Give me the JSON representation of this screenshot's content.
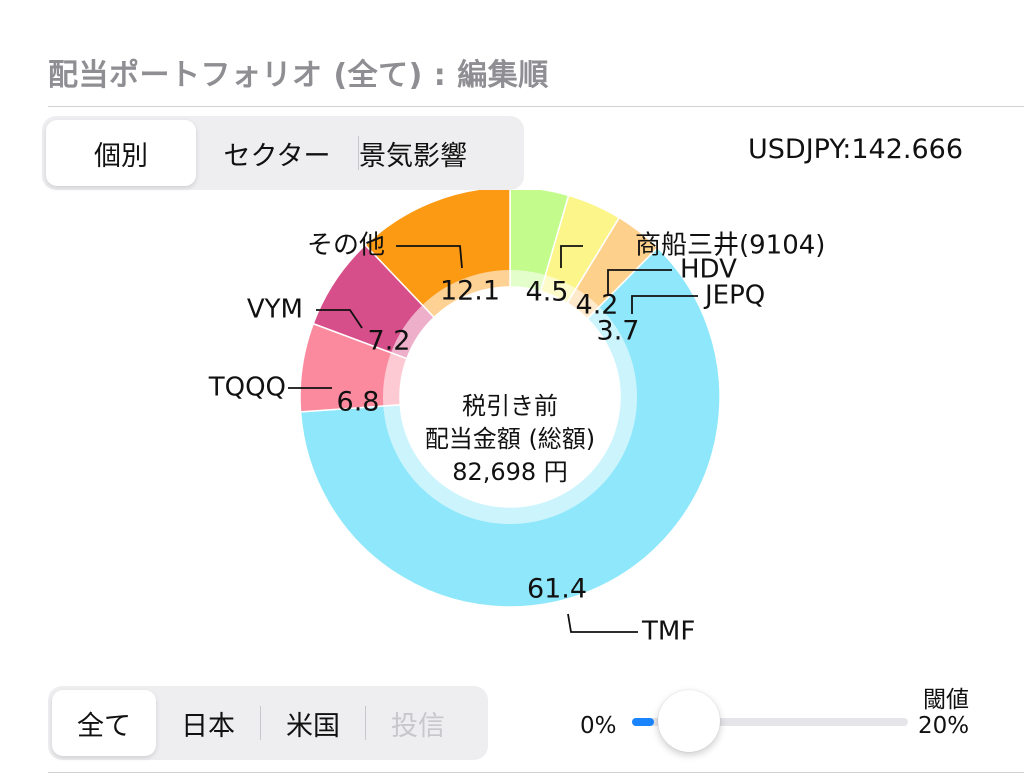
{
  "header": {
    "title": "配当ポートフォリオ (全て) : 編集順",
    "usdjpy": "USDJPY:142.666"
  },
  "view_tabs": [
    {
      "label": "個別",
      "active": true
    },
    {
      "label": "セクター",
      "active": false
    },
    {
      "label": "景気影響",
      "active": false
    }
  ],
  "region_tabs": [
    {
      "label": "全て",
      "active": true,
      "disabled": false
    },
    {
      "label": "日本",
      "active": false,
      "disabled": false
    },
    {
      "label": "米国",
      "active": false,
      "disabled": false
    },
    {
      "label": "投信",
      "active": false,
      "disabled": true
    }
  ],
  "threshold": {
    "caption": "閾値",
    "min_label": "0%",
    "max_label": "20%",
    "value_fraction": 0.02
  },
  "chart_data": {
    "type": "pie",
    "donut": true,
    "center_text": [
      "税引き前",
      "配当金額 (総額)",
      "82,698 円"
    ],
    "slices": [
      {
        "label": "商船三井(9104)",
        "value": 4.5,
        "value_label": "4.5",
        "color": "#c3fc8c"
      },
      {
        "label": "HDV",
        "value": 4.2,
        "value_label": "4.2",
        "color": "#fcf58a"
      },
      {
        "label": "JEPQ",
        "value": 3.7,
        "value_label": "3.7",
        "color": "#fdd08c"
      },
      {
        "label": "TMF",
        "value": 61.4,
        "value_label": "61.4",
        "color": "#8ee7fb"
      },
      {
        "label": "TQQQ",
        "value": 6.8,
        "value_label": "6.8",
        "color": "#fb8a9e"
      },
      {
        "label": "VYM",
        "value": 7.2,
        "value_label": "7.2",
        "color": "#d74f8a"
      },
      {
        "label": "その他",
        "value": 12.1,
        "value_label": "12.1",
        "color": "#fd9a14"
      }
    ]
  }
}
